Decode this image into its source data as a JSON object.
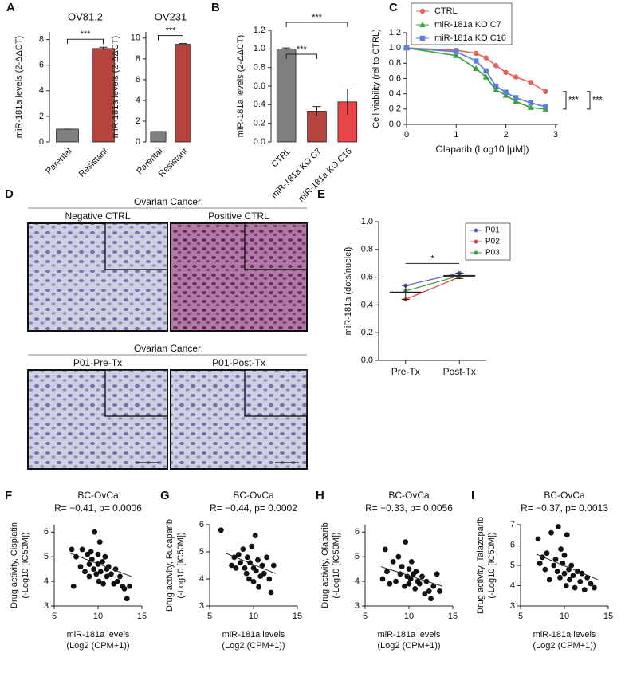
{
  "chart_data": [
    {
      "panel": "A",
      "type": "bar",
      "title": "OV81.2",
      "ylabel": "miR-181a levels (2-ΔΔCT)",
      "categories": [
        "Parental",
        "Resistant"
      ],
      "values": [
        1,
        7.3
      ],
      "errors": [
        0,
        0.1
      ],
      "colors": [
        "#7f7f7f",
        "#b5443f"
      ],
      "ylim": [
        0,
        8.6
      ],
      "yticks": [
        0,
        2,
        4,
        6,
        8
      ],
      "annotations": [
        "***"
      ]
    },
    {
      "type": "bar",
      "title": "OV231",
      "ylabel": "miR-181a levels (2-ΔΔCT)",
      "categories": [
        "Parental",
        "Resistant"
      ],
      "values": [
        1,
        9.4
      ],
      "errors": [
        0,
        0.08
      ],
      "colors": [
        "#7f7f7f",
        "#b5443f"
      ],
      "ylim": [
        0,
        10.6
      ],
      "yticks": [
        0,
        2,
        4,
        6,
        8,
        10
      ],
      "annotations": [
        "***"
      ]
    },
    {
      "panel": "B",
      "type": "bar",
      "ylabel": "miR-181a levels (2-ΔΔCT)",
      "categories": [
        "CTRL",
        "miR-181a KO C7",
        "miR-181a KO C16"
      ],
      "values": [
        1,
        0.33,
        0.43
      ],
      "errors": [
        0.01,
        0.05,
        0.14
      ],
      "colors": [
        "#7f7f7f",
        "#b5443f",
        "#e8474a"
      ],
      "ylim": [
        0,
        1.2
      ],
      "yticks": [
        {
          "value": 0,
          "label": "0.0"
        },
        0.2,
        0.4,
        0.6,
        0.8,
        {
          "value": 1,
          "label": "1.0"
        },
        1.2
      ],
      "annotations": [
        "***",
        "***"
      ]
    },
    {
      "panel": "C",
      "type": "line",
      "xlabel": "Olaparib (Log10 [μM])",
      "ylabel": "Cell viability (rel to CTRL)",
      "x": [
        0,
        1,
        1.4,
        1.6,
        1.8,
        2,
        2.2,
        2.5,
        2.8
      ],
      "series": [
        {
          "name": "CTRL",
          "color": "#e8605a",
          "values": [
            1,
            0.97,
            0.93,
            0.87,
            0.77,
            0.68,
            0.62,
            0.55,
            0.43
          ]
        },
        {
          "name": "miR-181a KO C7",
          "color": "#3aa23a",
          "values": [
            1,
            0.9,
            0.73,
            0.62,
            0.45,
            0.38,
            0.3,
            0.22,
            0.2
          ]
        },
        {
          "name": "miR-181a KO C16",
          "color": "#5b7fd6",
          "values": [
            1,
            0.95,
            0.83,
            0.7,
            0.5,
            0.42,
            0.35,
            0.28,
            0.23
          ]
        }
      ],
      "xlim": [
        0,
        3.05
      ],
      "xticks": [
        0,
        1,
        2,
        3
      ],
      "ylim": [
        0,
        1.2
      ],
      "yticks": [
        {
          "value": 0,
          "label": "0.0"
        },
        0.2,
        0.4,
        0.6,
        0.8,
        {
          "value": 1,
          "label": "1.0"
        },
        1.2
      ],
      "annotations": [
        "***",
        "***"
      ]
    },
    {
      "panel": "E",
      "type": "dot",
      "ylabel": "miR-181a (dots/nuclei)",
      "categories": [
        "Pre-Tx",
        "Post-Tx"
      ],
      "series": [
        {
          "name": "P01",
          "color": "#5b5bd6",
          "values": [
            0.54,
            0.63
          ]
        },
        {
          "name": "P02",
          "color": "#e04040",
          "values": [
            0.44,
            0.6
          ]
        },
        {
          "name": "P03",
          "color": "#3aa23a",
          "values": [
            0.5,
            0.61
          ]
        }
      ],
      "means": [
        0.49,
        0.61
      ],
      "errors": [
        0.05,
        0.02
      ],
      "ylim": [
        0,
        1
      ],
      "yticks": [
        {
          "value": 0,
          "label": "0.0"
        },
        0.2,
        0.4,
        0.6,
        0.8,
        {
          "value": 1,
          "label": "1.0"
        }
      ],
      "annotations": [
        "*"
      ]
    },
    {
      "panel": "F",
      "type": "scatter",
      "title": "BC-OvCa",
      "subtitle": "R= −0.41, p= 0.0006",
      "xlabel": [
        "miR-181a levels",
        "(Log2 (CPM+1))"
      ],
      "ylabel": [
        "Drug activity, Cisplatin",
        "(-Log10 [IC50M])"
      ],
      "x": [
        7,
        7.2,
        7.5,
        8,
        8.2,
        8.5,
        8.8,
        9,
        9,
        9.2,
        9.3,
        9.5,
        9.6,
        9.8,
        10,
        10,
        10.1,
        10.2,
        10.3,
        10.5,
        10.6,
        10.8,
        11,
        11,
        11.2,
        11.5,
        11.8,
        12,
        12.2,
        12.5,
        12.8,
        13,
        13.3,
        13.6
      ],
      "y": [
        5.3,
        3.8,
        5,
        4.6,
        5.3,
        4.4,
        5.1,
        4.7,
        4.2,
        5.2,
        4.9,
        4.5,
        6,
        4.3,
        5.1,
        4.7,
        4,
        5.6,
        4.4,
        4.8,
        3.9,
        5,
        4.5,
        4.2,
        4.6,
        4.3,
        3.9,
        4.5,
        4,
        4.2,
        3.8,
        3.7,
        3.3,
        3.8
      ],
      "trend": {
        "x": [
          6.8,
          13.8
        ],
        "y": [
          5.15,
          4.2
        ]
      },
      "xlim": [
        5,
        15
      ],
      "xticks": [
        5,
        10,
        15
      ],
      "ylim": [
        3,
        6.3
      ],
      "yticks": [
        3,
        4,
        5,
        6
      ]
    },
    {
      "panel": "G",
      "type": "scatter",
      "title": "BC-OvCa",
      "subtitle": "R= −0.44, p= 0.0002",
      "xlabel": [
        "miR-181a levels",
        "(Log2 (CPM+1))"
      ],
      "ylabel": [
        "Drug activity, Rucaparib",
        "(-Log10 [IC50M])"
      ],
      "x": [
        6.3,
        7.5,
        7.8,
        8,
        8.3,
        8.5,
        8.8,
        9,
        9.2,
        9.3,
        9.5,
        9.6,
        9.8,
        10,
        10,
        10.2,
        10.3,
        10.5,
        10.6,
        10.8,
        11,
        11.2,
        11.5,
        11.8,
        12,
        12.3
      ],
      "y": [
        5.8,
        4.5,
        4.8,
        4.4,
        4.9,
        4.6,
        5.1,
        4.4,
        4.2,
        4.8,
        4,
        4.6,
        5.2,
        4.4,
        3.9,
        5.6,
        4.3,
        4.7,
        3.7,
        4.1,
        4.5,
        4.2,
        4.8,
        4,
        3.5,
        4.5
      ],
      "trend": {
        "x": [
          6.8,
          12.5
        ],
        "y": [
          4.95,
          4.2
        ]
      },
      "xlim": [
        5,
        15
      ],
      "xticks": [
        5,
        10,
        15
      ],
      "ylim": [
        3,
        6
      ],
      "yticks": [
        3,
        4,
        5,
        6
      ]
    },
    {
      "panel": "H",
      "type": "scatter",
      "title": "BC-OvCa",
      "subtitle": "R= −0.33, p= 0.0056",
      "xlabel": [
        "miR-181a levels",
        "(Log2 (CPM+1))"
      ],
      "ylabel": [
        "Drug activity, Olaparib",
        "(-Log10 [IC50M])"
      ],
      "x": [
        7,
        7.3,
        7.5,
        7.8,
        8.2,
        8.5,
        8.8,
        9,
        9.2,
        9.5,
        9.6,
        9.8,
        10,
        10,
        10.2,
        10.3,
        10.5,
        10.7,
        10.8,
        11,
        11.2,
        11.5,
        11.8,
        12,
        12.3,
        12.5,
        12.8,
        13.2,
        13.5
      ],
      "y": [
        4.1,
        5.3,
        4.4,
        3.9,
        4.8,
        4,
        5,
        4.3,
        4.6,
        3.8,
        5.6,
        4.2,
        4.5,
        3.9,
        4.1,
        4.8,
        4.3,
        3.7,
        4.4,
        4,
        3.9,
        4.2,
        3.5,
        4,
        3.6,
        3.3,
        3.8,
        4.3,
        3.6
      ],
      "trend": {
        "x": [
          6.8,
          13.8
        ],
        "y": [
          4.6,
          3.8
        ]
      },
      "xlim": [
        5,
        15
      ],
      "xticks": [
        5,
        10,
        15
      ],
      "ylim": [
        3,
        6.3
      ],
      "yticks": [
        3,
        4,
        5,
        6
      ]
    },
    {
      "panel": "I",
      "type": "scatter",
      "title": "BC-OvCa",
      "subtitle": "R= −0.37, p= 0.0013",
      "xlabel": [
        "miR-181a levels",
        "(Log2 (CPM+1))"
      ],
      "ylabel": [
        "Drug activity, Talazoparib",
        "(-Log10 [IC50M])"
      ],
      "x": [
        7,
        7.2,
        7.5,
        7.8,
        8,
        8.3,
        8.5,
        8.8,
        9,
        9.2,
        9.3,
        9.5,
        9.6,
        9.8,
        10,
        10,
        10.2,
        10.3,
        10.5,
        10.6,
        10.8,
        11,
        11.2,
        11.5,
        11.8,
        12,
        12.3,
        12.6,
        13,
        13.4
      ],
      "y": [
        6.3,
        5.1,
        5.4,
        4.8,
        5.6,
        4.3,
        6.6,
        5,
        5.3,
        4.7,
        6.9,
        4.4,
        5.8,
        5.1,
        4.6,
        5.5,
        4,
        6.5,
        4.8,
        4.3,
        5,
        4.5,
        3.9,
        4.7,
        4.2,
        4.6,
        3.8,
        4.4,
        4.1,
        3.9
      ],
      "trend": {
        "x": [
          6.8,
          13.8
        ],
        "y": [
          5.55,
          4.3
        ]
      },
      "xlim": [
        5,
        15
      ],
      "xticks": [
        5,
        10,
        15
      ],
      "ylim": [
        3,
        7
      ],
      "yticks": [
        3,
        4,
        5,
        6,
        7
      ]
    }
  ],
  "histology": {
    "panel": "D",
    "groups": [
      {
        "title": "Ovarian Cancer",
        "images": [
          "Negative CTRL",
          "Positive CTRL"
        ]
      },
      {
        "title": "Ovarian Cancer",
        "images": [
          "P01-Pre-Tx",
          "P01-Post-Tx"
        ]
      }
    ]
  }
}
